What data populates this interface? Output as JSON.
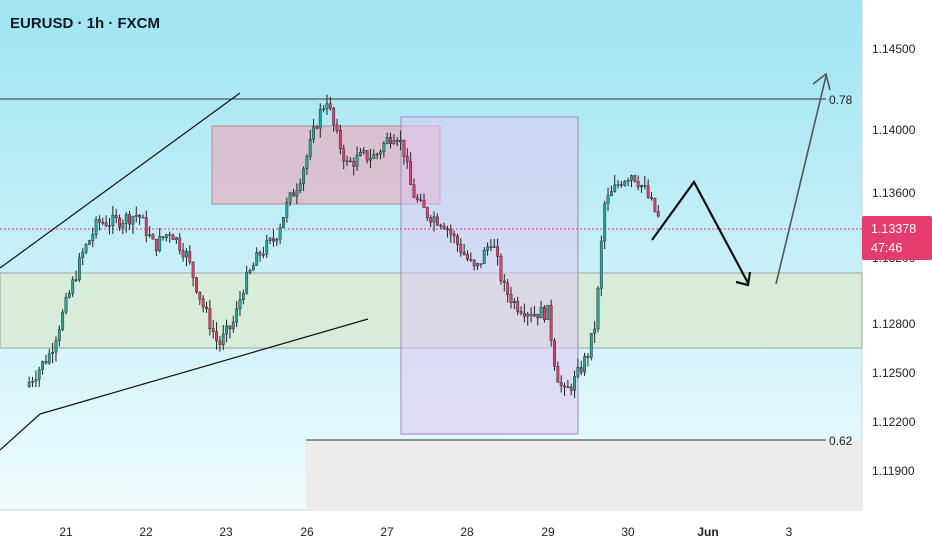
{
  "header": {
    "title": "EURUSD · 1h · FXCM"
  },
  "price_tag": {
    "price": "1.13378",
    "countdown": "47:46"
  },
  "colors": {
    "bull": "#26a69a",
    "bear": "#e53d6b",
    "wick": "#222222",
    "current_tag": "#e53d6b",
    "sky_top": "#9fe4f2",
    "sky_bottom": "#eefbfd"
  },
  "chart_data": {
    "type": "candlestick",
    "x_ticks": [
      "21",
      "22",
      "23",
      "26",
      "27",
      "28",
      "29",
      "30",
      "Jun",
      "3"
    ],
    "y_ticks": [
      "1.14500",
      "1.14000",
      "1.13600",
      "1.13200",
      "1.12800",
      "1.12500",
      "1.12200",
      "1.11900"
    ],
    "ylim": [
      1.1165,
      1.1475
    ],
    "current_price": 1.13378,
    "levels": [
      {
        "label": "0.78",
        "price": 1.1415
      },
      {
        "label": "0.62",
        "price": 1.1213
      }
    ],
    "price_path": [
      [
        20.5,
        1.124
      ],
      [
        20.8,
        1.126
      ],
      [
        21.0,
        1.129
      ],
      [
        21.2,
        1.132
      ],
      [
        21.4,
        1.134
      ],
      [
        21.6,
        1.134
      ],
      [
        21.9,
        1.1345
      ],
      [
        22.1,
        1.1325
      ],
      [
        22.3,
        1.1335
      ],
      [
        22.5,
        1.132
      ],
      [
        22.7,
        1.129
      ],
      [
        22.9,
        1.1265
      ],
      [
        23.1,
        1.128
      ],
      [
        23.2,
        1.13
      ],
      [
        23.4,
        1.132
      ],
      [
        23.6,
        1.133
      ],
      [
        23.75,
        1.135
      ],
      [
        23.9,
        1.1365
      ],
      [
        24.0,
        1.138
      ],
      [
        24.15,
        1.1405
      ],
      [
        24.25,
        1.1415
      ],
      [
        24.35,
        1.1395
      ],
      [
        24.5,
        1.1375
      ],
      [
        24.7,
        1.138
      ],
      [
        24.85,
        1.138
      ],
      [
        25.0,
        1.139
      ],
      [
        25.1,
        1.1395
      ],
      [
        25.2,
        1.1385
      ],
      [
        25.3,
        1.136
      ],
      [
        25.4,
        1.135
      ],
      [
        25.5,
        1.1345
      ],
      [
        25.7,
        1.134
      ],
      [
        25.9,
        1.1325
      ],
      [
        26.1,
        1.131
      ],
      [
        26.3,
        1.133
      ],
      [
        26.45,
        1.13
      ],
      [
        26.6,
        1.129
      ],
      [
        26.8,
        1.1285
      ],
      [
        27.0,
        1.1285
      ],
      [
        27.1,
        1.125
      ],
      [
        27.2,
        1.1235
      ],
      [
        27.35,
        1.1245
      ],
      [
        27.5,
        1.126
      ],
      [
        27.6,
        1.128
      ],
      [
        27.7,
        1.135
      ],
      [
        27.9,
        1.1365
      ],
      [
        28.05,
        1.137
      ],
      [
        28.2,
        1.136
      ],
      [
        28.3,
        1.135
      ],
      [
        28.4,
        1.134
      ]
    ],
    "annotations": [
      {
        "type": "rising-channel",
        "text": ""
      },
      {
        "type": "supply-zone",
        "text": ""
      },
      {
        "type": "demand-zone",
        "text": ""
      },
      {
        "type": "projection",
        "text": ""
      }
    ]
  }
}
